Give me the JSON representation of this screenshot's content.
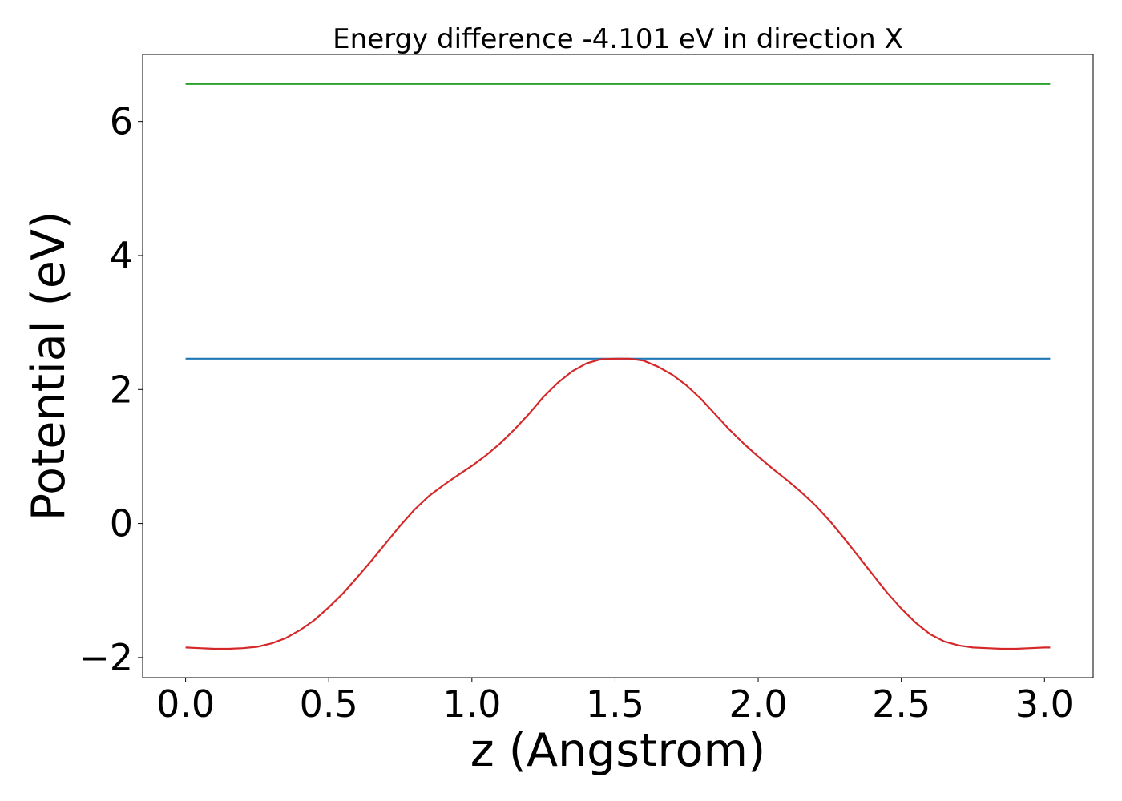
{
  "chart_data": {
    "type": "line",
    "title": "Energy difference -4.101 eV in direction X",
    "xlabel": "z (Angstrom)",
    "ylabel": "Potential (eV)",
    "xlim": [
      -0.15,
      3.17
    ],
    "ylim": [
      -2.3,
      7.0
    ],
    "x_ticks": [
      0.0,
      0.5,
      1.0,
      1.5,
      2.0,
      2.5,
      3.0
    ],
    "x_tick_labels": [
      "0.0",
      "0.5",
      "1.0",
      "1.5",
      "2.0",
      "2.5",
      "3.0"
    ],
    "y_ticks": [
      -2,
      0,
      2,
      4,
      6
    ],
    "y_tick_labels": [
      "−2",
      "0",
      "2",
      "4",
      "6"
    ],
    "grid": false,
    "series": [
      {
        "color": "#2ca02c",
        "x": [
          0.0,
          3.02
        ],
        "y": [
          6.56,
          6.56
        ]
      },
      {
        "color": "#1f77b4",
        "x": [
          0.0,
          3.02
        ],
        "y": [
          2.46,
          2.46
        ]
      },
      {
        "color": "#d62728",
        "x": [
          0.0,
          0.05,
          0.1,
          0.15,
          0.2,
          0.25,
          0.3,
          0.35,
          0.4,
          0.45,
          0.5,
          0.55,
          0.6,
          0.65,
          0.7,
          0.75,
          0.8,
          0.85,
          0.9,
          0.95,
          1.0,
          1.05,
          1.1,
          1.15,
          1.2,
          1.25,
          1.3,
          1.35,
          1.4,
          1.45,
          1.5,
          1.55,
          1.6,
          1.65,
          1.7,
          1.75,
          1.8,
          1.85,
          1.9,
          1.95,
          2.0,
          2.05,
          2.1,
          2.15,
          2.2,
          2.25,
          2.3,
          2.35,
          2.4,
          2.45,
          2.5,
          2.55,
          2.6,
          2.65,
          2.7,
          2.75,
          2.8,
          2.85,
          2.9,
          2.95,
          3.0,
          3.02
        ],
        "y": [
          -1.85,
          -1.86,
          -1.87,
          -1.87,
          -1.86,
          -1.84,
          -1.79,
          -1.71,
          -1.59,
          -1.44,
          -1.25,
          -1.04,
          -0.8,
          -0.55,
          -0.29,
          -0.03,
          0.21,
          0.41,
          0.57,
          0.72,
          0.86,
          1.02,
          1.2,
          1.41,
          1.64,
          1.89,
          2.1,
          2.27,
          2.39,
          2.45,
          2.46,
          2.46,
          2.43,
          2.34,
          2.22,
          2.06,
          1.86,
          1.63,
          1.4,
          1.19,
          1.0,
          0.82,
          0.65,
          0.47,
          0.27,
          0.04,
          -0.22,
          -0.49,
          -0.76,
          -1.03,
          -1.27,
          -1.48,
          -1.65,
          -1.76,
          -1.82,
          -1.85,
          -1.86,
          -1.87,
          -1.87,
          -1.86,
          -1.85,
          -1.85
        ]
      }
    ]
  }
}
